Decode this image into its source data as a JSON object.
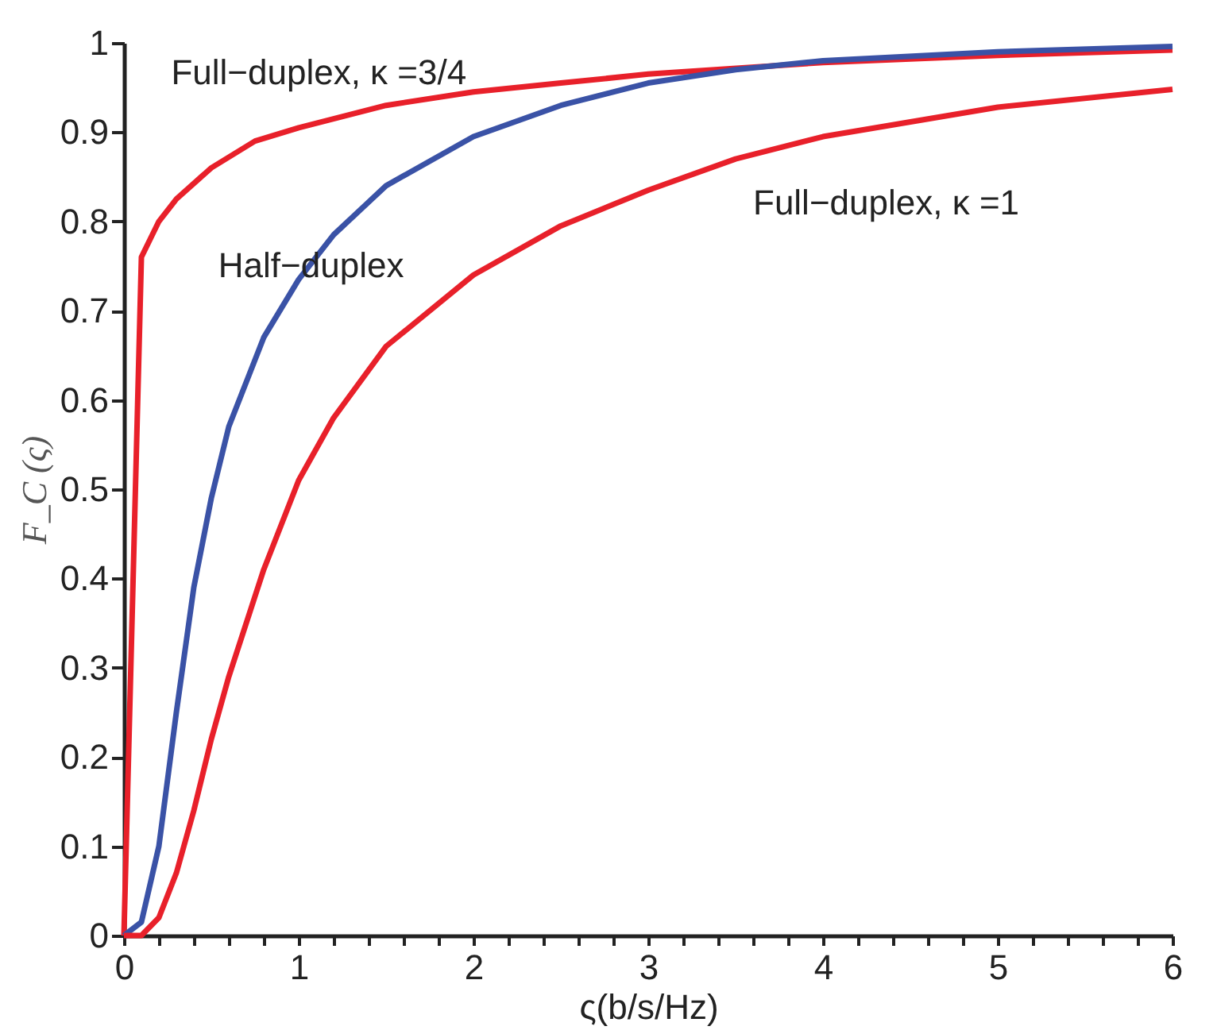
{
  "chart_data": {
    "type": "line",
    "xlabel": "ς(b/s/Hz)",
    "ylabel": "F_C (ς)",
    "series": [
      {
        "name": "Full−duplex, κ =3/4",
        "color": "#e8202a",
        "x": [
          0,
          0.1,
          0.2,
          0.3,
          0.5,
          0.75,
          1,
          1.5,
          2,
          2.5,
          3,
          4,
          5,
          6
        ],
        "values": [
          0,
          0.76,
          0.8,
          0.825,
          0.86,
          0.89,
          0.905,
          0.93,
          0.945,
          0.955,
          0.965,
          0.978,
          0.986,
          0.992
        ]
      },
      {
        "name": "Half−duplex",
        "color": "#3a52a6",
        "x": [
          0,
          0.1,
          0.2,
          0.3,
          0.4,
          0.5,
          0.6,
          0.8,
          1,
          1.2,
          1.5,
          2,
          2.5,
          3,
          3.5,
          4,
          5,
          6
        ],
        "values": [
          0,
          0.015,
          0.1,
          0.25,
          0.39,
          0.49,
          0.57,
          0.67,
          0.735,
          0.785,
          0.84,
          0.895,
          0.93,
          0.955,
          0.97,
          0.98,
          0.99,
          0.996
        ]
      },
      {
        "name": "Full−duplex, κ =1",
        "color": "#e8202a",
        "x": [
          0,
          0.1,
          0.2,
          0.3,
          0.4,
          0.5,
          0.6,
          0.8,
          1,
          1.2,
          1.5,
          2,
          2.5,
          3,
          3.5,
          4,
          5,
          6
        ],
        "values": [
          0,
          0,
          0.02,
          0.07,
          0.14,
          0.22,
          0.29,
          0.41,
          0.51,
          0.58,
          0.66,
          0.74,
          0.795,
          0.835,
          0.87,
          0.895,
          0.928,
          0.948
        ]
      }
    ],
    "xlim": [
      0,
      6
    ],
    "xticks": [
      0,
      {
        "value": 0.2,
        "label": null
      },
      {
        "value": 0.4,
        "label": null
      },
      {
        "value": 0.6,
        "label": null
      },
      {
        "value": 0.8,
        "label": null
      },
      1,
      {
        "value": 1.2,
        "label": null
      },
      {
        "value": 1.4,
        "label": null
      },
      {
        "value": 1.6,
        "label": null
      },
      {
        "value": 1.8,
        "label": null
      },
      2,
      {
        "value": 2.2,
        "label": null
      },
      {
        "value": 2.4,
        "label": null
      },
      {
        "value": 2.6,
        "label": null
      },
      {
        "value": 2.8,
        "label": null
      },
      3,
      {
        "value": 3.2,
        "label": null
      },
      {
        "value": 3.4,
        "label": null
      },
      {
        "value": 3.6,
        "label": null
      },
      {
        "value": 3.8,
        "label": null
      },
      4,
      {
        "value": 4.2,
        "label": null
      },
      {
        "value": 4.4,
        "label": null
      },
      {
        "value": 4.6,
        "label": null
      },
      {
        "value": 4.8,
        "label": null
      },
      5,
      {
        "value": 5.2,
        "label": null
      },
      {
        "value": 5.4,
        "label": null
      },
      {
        "value": 5.6,
        "label": null
      },
      {
        "value": 5.8,
        "label": null
      },
      6
    ],
    "ylim": [
      0,
      1
    ],
    "yticks": [
      0,
      0.1,
      0.2,
      0.3,
      0.4,
      0.5,
      0.6,
      0.7,
      0.8,
      0.9,
      1
    ],
    "grid": false,
    "legend": false,
    "marker": "none",
    "line_style": "solid"
  }
}
